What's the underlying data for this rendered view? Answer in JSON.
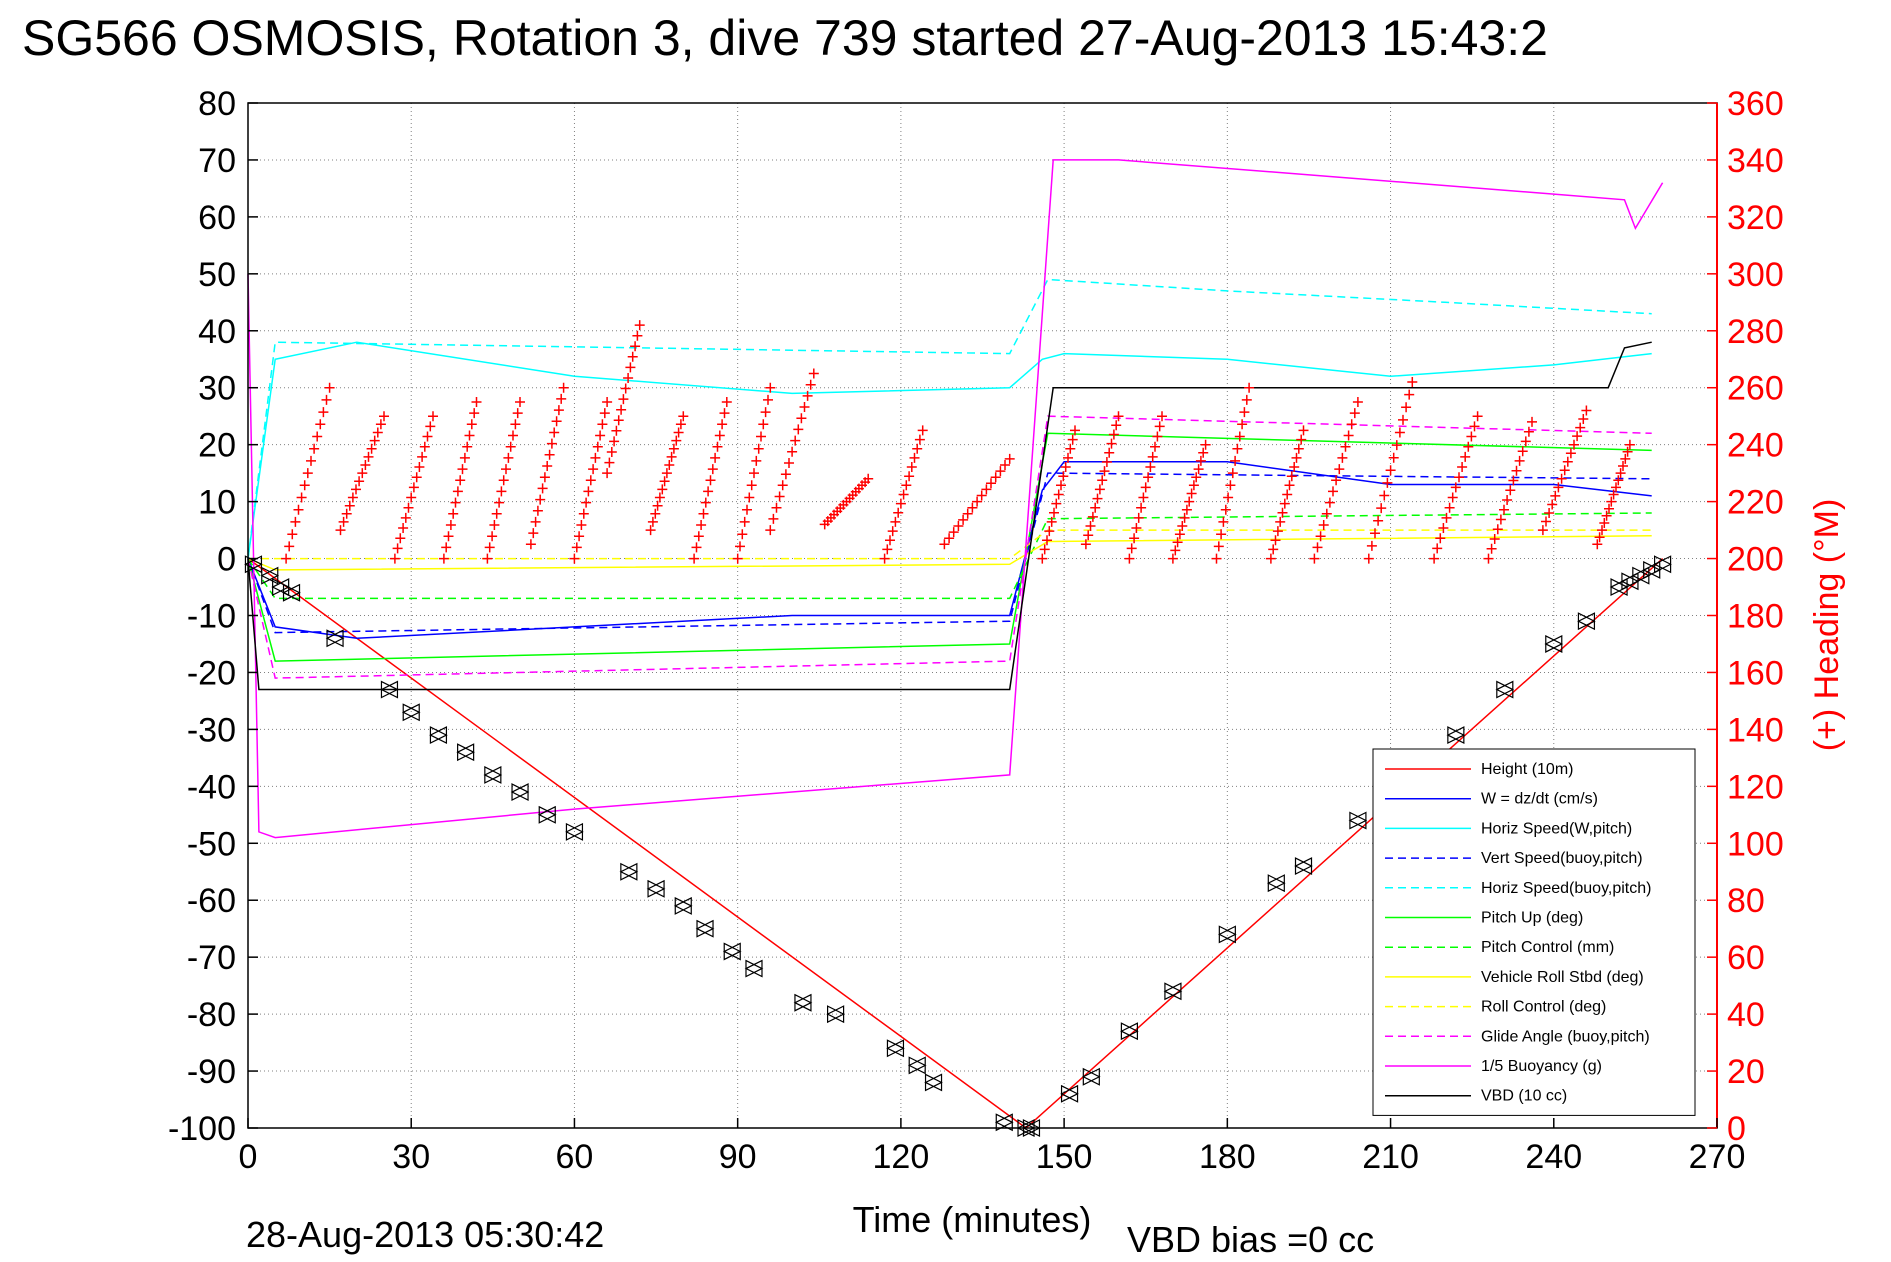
{
  "chart_data": {
    "type": "line",
    "title": "SG566 OSMOSIS, Rotation 3, dive 739 started 27-Aug-2013 15:43:2",
    "xlabel": "Time (minutes)",
    "ylabel": "",
    "y2label": "(+) Heading (°M)",
    "footer_date": "28-Aug-2013 05:30:42",
    "footer_vbd": "VBD bias =0 cc",
    "xlim": [
      0,
      270
    ],
    "ylim": [
      -100,
      80
    ],
    "y2lim": [
      0,
      360
    ],
    "xticks": [
      0,
      30,
      60,
      90,
      120,
      150,
      180,
      210,
      240,
      270
    ],
    "yticks": [
      -100,
      -90,
      -80,
      -70,
      -60,
      -50,
      -40,
      -30,
      -20,
      -10,
      0,
      10,
      20,
      30,
      40,
      50,
      60,
      70,
      80
    ],
    "y2ticks": [
      0,
      20,
      40,
      60,
      80,
      100,
      120,
      140,
      160,
      180,
      200,
      220,
      240,
      260,
      280,
      300,
      320,
      340,
      360
    ],
    "grid": true,
    "legend_position": "bottom-right",
    "series": [
      {
        "name": "Height (10m)",
        "color": "#ff0000",
        "style": "solid",
        "x": [
          0,
          143,
          260
        ],
        "y": [
          0,
          -100,
          0
        ]
      },
      {
        "name": "W = dz/dt (cm/s)",
        "color": "#0000ff",
        "style": "solid",
        "x": [
          0,
          5,
          20,
          60,
          100,
          140,
          146,
          150,
          180,
          210,
          240,
          258
        ],
        "y": [
          0,
          -12,
          -14,
          -12,
          -10,
          -10,
          12,
          17,
          17,
          13,
          13,
          11
        ]
      },
      {
        "name": "Horiz Speed(W,pitch)",
        "color": "#00ffff",
        "style": "solid",
        "x": [
          0,
          5,
          20,
          60,
          100,
          140,
          146,
          150,
          180,
          210,
          240,
          258
        ],
        "y": [
          0,
          35,
          38,
          32,
          29,
          30,
          35,
          36,
          35,
          32,
          34,
          36
        ]
      },
      {
        "name": "Vert Speed(buoy,pitch)",
        "color": "#0000ff",
        "style": "dashed",
        "x": [
          0,
          5,
          140,
          147,
          258
        ],
        "y": [
          0,
          -13,
          -11,
          15,
          14
        ]
      },
      {
        "name": "Horiz Speed(buoy,pitch)",
        "color": "#00ffff",
        "style": "dashed",
        "x": [
          0,
          5,
          140,
          147,
          180,
          220,
          258
        ],
        "y": [
          0,
          38,
          36,
          49,
          47,
          45,
          43
        ]
      },
      {
        "name": "Pitch Up (deg)",
        "color": "#00ff00",
        "style": "solid",
        "x": [
          0,
          5,
          140,
          147,
          258
        ],
        "y": [
          0,
          -18,
          -15,
          22,
          19
        ]
      },
      {
        "name": "Pitch Control (mm)",
        "color": "#00ff00",
        "style": "dashed",
        "x": [
          0,
          5,
          140,
          147,
          258
        ],
        "y": [
          0,
          -7,
          -7,
          7,
          8
        ]
      },
      {
        "name": "Vehicle Roll Stbd (deg)",
        "color": "#ffff00",
        "style": "solid",
        "x": [
          0,
          5,
          140,
          147,
          258
        ],
        "y": [
          0,
          -2,
          -1,
          3,
          4
        ]
      },
      {
        "name": "Roll Control (deg)",
        "color": "#ffff00",
        "style": "dashed",
        "x": [
          0,
          5,
          140,
          147,
          258
        ],
        "y": [
          0,
          0,
          0,
          5,
          5
        ]
      },
      {
        "name": "Glide Angle (buoy,pitch)",
        "color": "#ff00ff",
        "style": "dashed",
        "x": [
          0,
          5,
          140,
          147,
          258
        ],
        "y": [
          0,
          -21,
          -18,
          25,
          22
        ]
      },
      {
        "name": "1/5 Buoyancy (g)",
        "color": "#ff00ff",
        "style": "solid",
        "x": [
          0,
          2,
          5,
          60,
          100,
          140,
          148,
          160,
          200,
          240,
          253,
          255,
          260
        ],
        "y": [
          50,
          -48,
          -49,
          -44,
          -41,
          -38,
          70,
          70,
          67,
          64,
          63,
          58,
          66
        ]
      },
      {
        "name": "VBD (10 cc)",
        "color": "#000000",
        "style": "solid",
        "x": [
          0,
          2,
          140,
          148,
          250,
          253,
          258
        ],
        "y": [
          0,
          -23,
          -23,
          30,
          30,
          37,
          38
        ]
      }
    ],
    "heading_series": {
      "name": "(+) Heading",
      "color": "#ff0000",
      "marker": "+",
      "axis": "right",
      "segments": [
        {
          "x0": 7,
          "x1": 15,
          "y0": 200,
          "y1": 260
        },
        {
          "x0": 17,
          "x1": 25,
          "y0": 210,
          "y1": 250
        },
        {
          "x0": 27,
          "x1": 34,
          "y0": 200,
          "y1": 250
        },
        {
          "x0": 36,
          "x1": 42,
          "y0": 200,
          "y1": 255
        },
        {
          "x0": 44,
          "x1": 50,
          "y0": 200,
          "y1": 255
        },
        {
          "x0": 52,
          "x1": 58,
          "y0": 205,
          "y1": 260
        },
        {
          "x0": 60,
          "x1": 66,
          "y0": 200,
          "y1": 255
        },
        {
          "x0": 66,
          "x1": 72,
          "y0": 230,
          "y1": 282
        },
        {
          "x0": 74,
          "x1": 80,
          "y0": 210,
          "y1": 250
        },
        {
          "x0": 82,
          "x1": 88,
          "y0": 200,
          "y1": 255
        },
        {
          "x0": 90,
          "x1": 96,
          "y0": 200,
          "y1": 260
        },
        {
          "x0": 96,
          "x1": 104,
          "y0": 210,
          "y1": 265
        },
        {
          "x0": 106,
          "x1": 114,
          "y0": 212,
          "y1": 228
        },
        {
          "x0": 117,
          "x1": 124,
          "y0": 200,
          "y1": 245
        },
        {
          "x0": 128,
          "x1": 140,
          "y0": 205,
          "y1": 235
        },
        {
          "x0": 146,
          "x1": 152,
          "y0": 200,
          "y1": 245
        },
        {
          "x0": 154,
          "x1": 160,
          "y0": 205,
          "y1": 250
        },
        {
          "x0": 162,
          "x1": 168,
          "y0": 200,
          "y1": 250
        },
        {
          "x0": 170,
          "x1": 176,
          "y0": 200,
          "y1": 240
        },
        {
          "x0": 178,
          "x1": 184,
          "y0": 200,
          "y1": 260
        },
        {
          "x0": 188,
          "x1": 194,
          "y0": 200,
          "y1": 245
        },
        {
          "x0": 196,
          "x1": 204,
          "y0": 200,
          "y1": 255
        },
        {
          "x0": 206,
          "x1": 214,
          "y0": 200,
          "y1": 262
        },
        {
          "x0": 218,
          "x1": 226,
          "y0": 200,
          "y1": 250
        },
        {
          "x0": 228,
          "x1": 236,
          "y0": 200,
          "y1": 248
        },
        {
          "x0": 238,
          "x1": 246,
          "y0": 210,
          "y1": 252
        },
        {
          "x0": 248,
          "x1": 254,
          "y0": 205,
          "y1": 240
        }
      ]
    },
    "depth_markers": {
      "name": "depth markers",
      "color": "#000000",
      "x": [
        1,
        4,
        6,
        8,
        16,
        26,
        30,
        35,
        40,
        45,
        50,
        55,
        60,
        70,
        75,
        80,
        84,
        89,
        93,
        102,
        108,
        119,
        123,
        126,
        139,
        143,
        144,
        151,
        155,
        162,
        170,
        180,
        189,
        194,
        204,
        222,
        231,
        240,
        246,
        252,
        254,
        256,
        258,
        260
      ],
      "y": [
        -1,
        -3,
        -5,
        -6,
        -14,
        -23,
        -27,
        -31,
        -34,
        -38,
        -41,
        -45,
        -48,
        -55,
        -58,
        -61,
        -65,
        -69,
        -72,
        -78,
        -80,
        -86,
        -89,
        -92,
        -99,
        -100,
        -100,
        -94,
        -91,
        -83,
        -76,
        -66,
        -57,
        -54,
        -46,
        -31,
        -23,
        -15,
        -11,
        -5,
        -4,
        -3,
        -2,
        -1
      ]
    }
  },
  "colors": {
    "heading_axis": "#ff0000",
    "grid": "#808080",
    "axis": "#000000"
  }
}
